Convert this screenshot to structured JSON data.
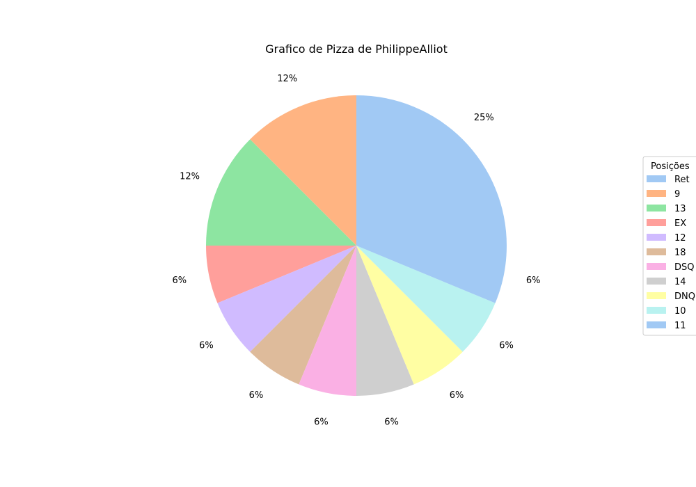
{
  "chart_data": {
    "type": "pie",
    "title": "Grafico de Pizza de PhilippeAlliot",
    "legend_title": "Posições",
    "legend_position": "right",
    "slices": [
      {
        "label": "Ret",
        "value": 4,
        "pct_label": "25%",
        "color": "#a1c9f4"
      },
      {
        "label": "9",
        "value": 2,
        "pct_label": "12%",
        "color": "#ffb482"
      },
      {
        "label": "13",
        "value": 2,
        "pct_label": "12%",
        "color": "#8de5a1"
      },
      {
        "label": "EX",
        "value": 1,
        "pct_label": "6%",
        "color": "#ff9f9b"
      },
      {
        "label": "12",
        "value": 1,
        "pct_label": "6%",
        "color": "#d0bbff"
      },
      {
        "label": "18",
        "value": 1,
        "pct_label": "6%",
        "color": "#debb9b"
      },
      {
        "label": "DSQ",
        "value": 1,
        "pct_label": "6%",
        "color": "#fab0e4"
      },
      {
        "label": "14",
        "value": 1,
        "pct_label": "6%",
        "color": "#cfcfcf"
      },
      {
        "label": "DNQ",
        "value": 1,
        "pct_label": "6%",
        "color": "#fffea3"
      },
      {
        "label": "10",
        "value": 1,
        "pct_label": "6%",
        "color": "#b9f2f0"
      },
      {
        "label": "11",
        "value": 1,
        "pct_label": "6%",
        "color": "#a1c9f4"
      }
    ]
  }
}
